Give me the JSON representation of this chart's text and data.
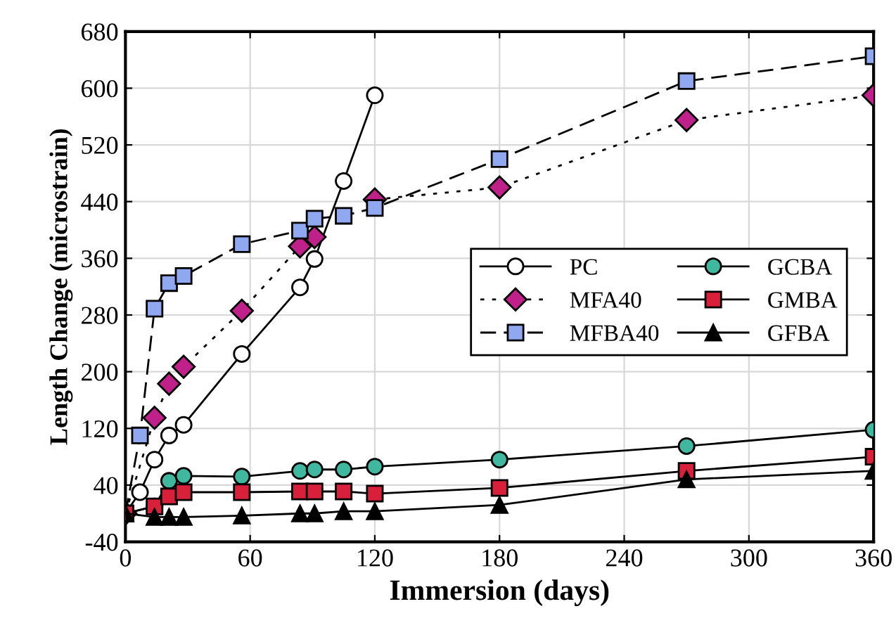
{
  "chart_data": {
    "type": "line",
    "xlabel": "Immersion (days)",
    "ylabel": "Length Change (microstrain)",
    "xlim": [
      0,
      360
    ],
    "xticks": [
      0,
      60,
      120,
      180,
      240,
      300,
      360
    ],
    "ylim": [
      -40,
      680
    ],
    "yticks": [
      -40,
      40,
      120,
      200,
      280,
      360,
      440,
      520,
      600,
      680
    ],
    "grid": true,
    "legend": "right",
    "series": [
      {
        "name": "PC",
        "color": "#ffffff",
        "marker": "circle",
        "line_style": "solid",
        "x": [
          0,
          7,
          14,
          21,
          28,
          56,
          84,
          91,
          105,
          120
        ],
        "values": [
          0,
          30,
          76,
          110,
          125,
          225,
          319,
          359,
          469,
          590
        ]
      },
      {
        "name": "MFA40",
        "color": "#c0208a",
        "marker": "diamond",
        "line_style": "dotted",
        "x": [
          0,
          14,
          21,
          28,
          56,
          84,
          91,
          105,
          120,
          180,
          270,
          360
        ],
        "values": [
          0,
          135,
          183,
          207,
          286,
          377,
          390,
          null,
          443,
          460,
          555,
          590
        ]
      },
      {
        "name": "MFBA40",
        "color": "#8fa8f0",
        "marker": "square",
        "line_style": "dashed",
        "x": [
          0,
          7,
          14,
          21,
          28,
          56,
          84,
          91,
          105,
          120,
          180,
          270,
          360
        ],
        "values": [
          0,
          110,
          289,
          325,
          335,
          380,
          399,
          416,
          420,
          431,
          500,
          610,
          645
        ]
      },
      {
        "name": "GCBA",
        "color": "#40b8a0",
        "marker": "circle",
        "line_style": "solid",
        "x": [
          0,
          14,
          21,
          28,
          56,
          84,
          91,
          105,
          120,
          180,
          270,
          360
        ],
        "values": [
          0,
          10,
          46,
          53,
          52,
          60,
          62,
          62,
          66,
          76,
          95,
          118
        ]
      },
      {
        "name": "GMBA",
        "color": "#d8203a",
        "marker": "square",
        "line_style": "solid",
        "x": [
          0,
          14,
          21,
          28,
          56,
          84,
          91,
          105,
          120,
          180,
          270,
          360
        ],
        "values": [
          0,
          10,
          24,
          30,
          30,
          31,
          31,
          31,
          28,
          36,
          60,
          80
        ]
      },
      {
        "name": "GFBA",
        "color": "#000000",
        "marker": "triangle",
        "line_style": "solid",
        "x": [
          0,
          14,
          21,
          28,
          56,
          84,
          91,
          105,
          120,
          180,
          270,
          360
        ],
        "values": [
          0,
          -5,
          -5,
          -5,
          -3,
          0,
          0,
          3,
          3,
          12,
          48,
          60
        ]
      }
    ]
  }
}
